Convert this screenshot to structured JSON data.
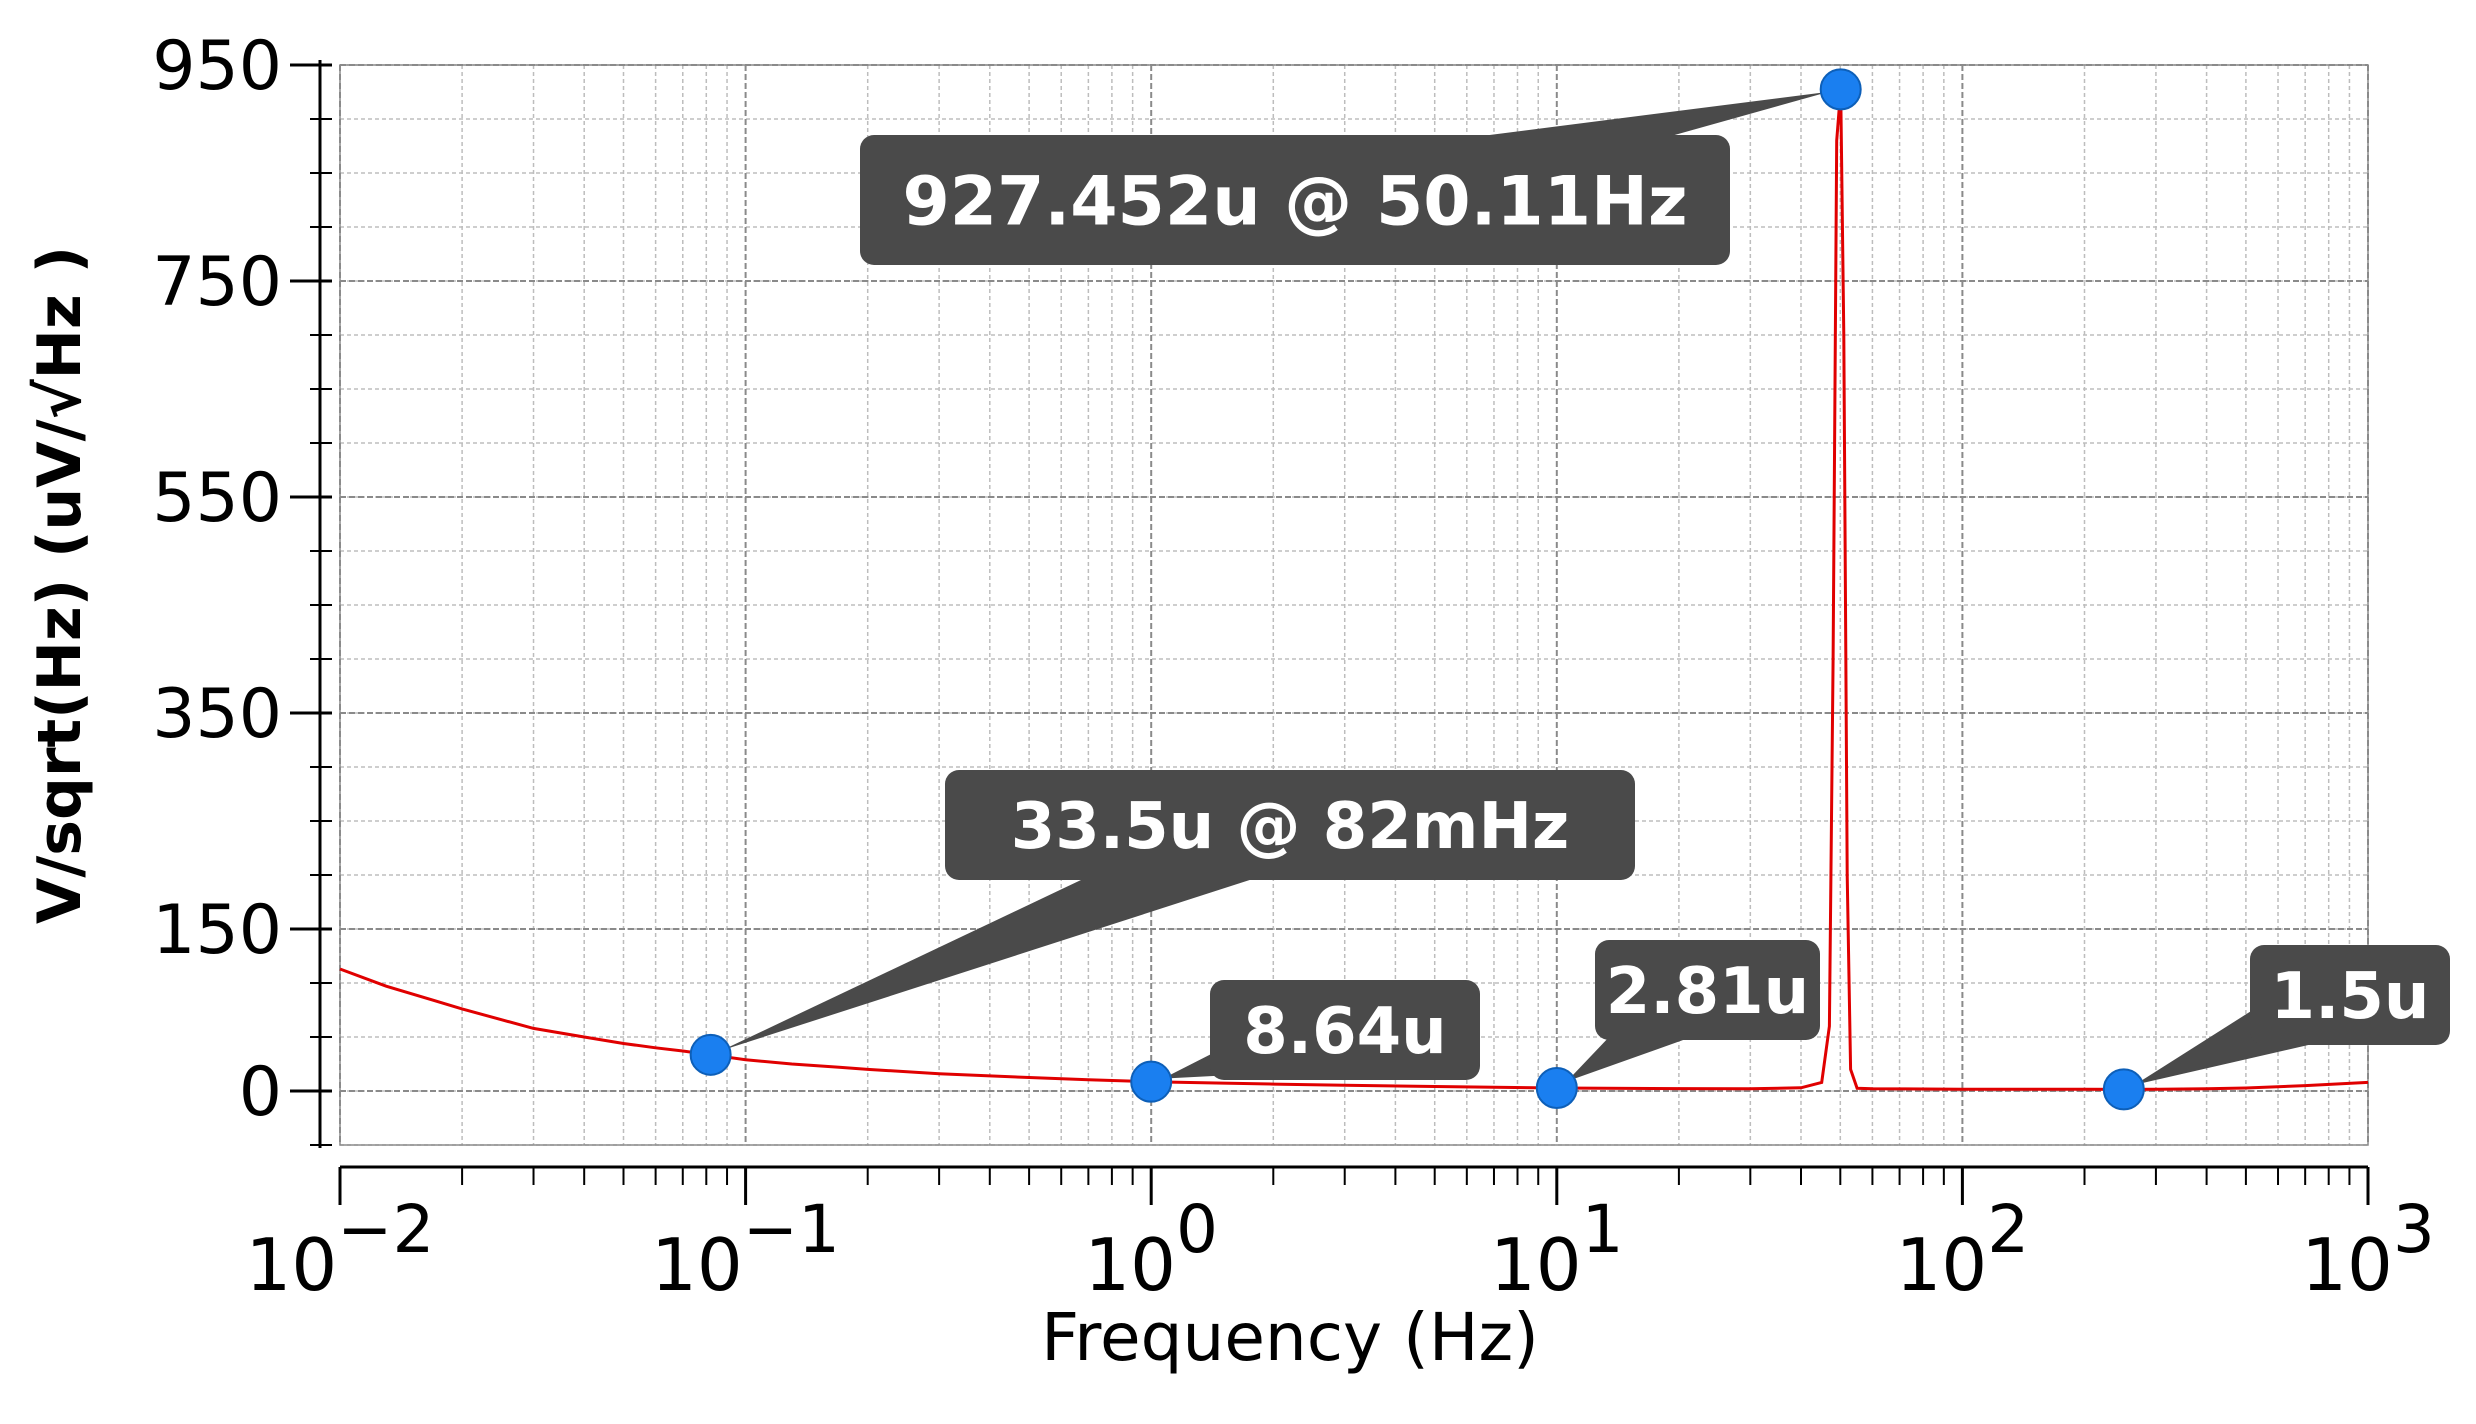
{
  "colors": {
    "background": "#ffffff",
    "grid_major": "#8a8a8a",
    "grid_minor": "#bdbdbd",
    "axis": "#000000",
    "line": "#e00000",
    "marker": "#1a7ff0",
    "callout_bg": "#4a4a4a",
    "callout_text": "#ffffff"
  },
  "chart_data": {
    "type": "line",
    "title": "",
    "xlabel": "Frequency (Hz)",
    "ylabel": "V/sqrt(Hz) (uV/√Hz )",
    "x_scale": "log",
    "y_scale": "linear",
    "xlim": [
      0.01,
      1000
    ],
    "ylim": [
      -50,
      950
    ],
    "grid": true,
    "x_ticks": [
      {
        "value": 0.01,
        "base": "10",
        "exp": "−2"
      },
      {
        "value": 0.1,
        "base": "10",
        "exp": "−1"
      },
      {
        "value": 1,
        "base": "10",
        "exp": "0"
      },
      {
        "value": 10,
        "base": "10",
        "exp": "1"
      },
      {
        "value": 100,
        "base": "10",
        "exp": "2"
      },
      {
        "value": 1000,
        "base": "10",
        "exp": "3"
      }
    ],
    "y_ticks": [
      {
        "value": 0,
        "label": "0"
      },
      {
        "value": 150,
        "label": "150"
      },
      {
        "value": 350,
        "label": "350"
      },
      {
        "value": 550,
        "label": "550"
      },
      {
        "value": 750,
        "label": "750"
      },
      {
        "value": 950,
        "label": "950"
      }
    ],
    "series": [
      {
        "x": [
          0.01,
          0.013,
          0.017,
          0.02,
          0.025,
          0.03,
          0.04,
          0.05,
          0.06,
          0.07,
          0.082,
          0.1,
          0.13,
          0.17,
          0.2,
          0.3,
          0.4,
          0.5,
          0.7,
          1.0,
          1.5,
          2,
          3,
          5,
          7,
          10,
          15,
          20,
          30,
          40,
          45,
          47,
          48,
          49,
          50.11,
          51,
          52,
          53,
          55,
          60,
          70,
          100,
          150,
          200,
          250,
          300,
          400,
          500,
          700,
          1000
        ],
        "y": [
          113,
          97,
          84,
          76,
          66,
          58,
          50,
          44,
          40,
          37,
          33.5,
          29,
          25,
          22,
          20,
          16,
          14,
          12.5,
          10.5,
          8.64,
          7.3,
          6.4,
          5.3,
          4.2,
          3.5,
          2.81,
          2.4,
          2.2,
          2.0,
          3,
          8,
          60,
          400,
          880,
          927.452,
          700,
          200,
          20,
          2.5,
          2.0,
          1.9,
          1.7,
          1.6,
          1.55,
          1.5,
          1.6,
          2.0,
          2.8,
          5,
          8
        ]
      }
    ],
    "annotations": [
      {
        "x": 50.11,
        "y": 927.452,
        "label": "927.452u @ 50.11Hz"
      },
      {
        "x": 0.082,
        "y": 33.5,
        "label": "33.5u @ 82mHz"
      },
      {
        "x": 1.0,
        "y": 8.64,
        "label": "8.64u"
      },
      {
        "x": 10.0,
        "y": 2.81,
        "label": "2.81u"
      },
      {
        "x": 250,
        "y": 1.5,
        "label": "1.5u"
      }
    ]
  }
}
